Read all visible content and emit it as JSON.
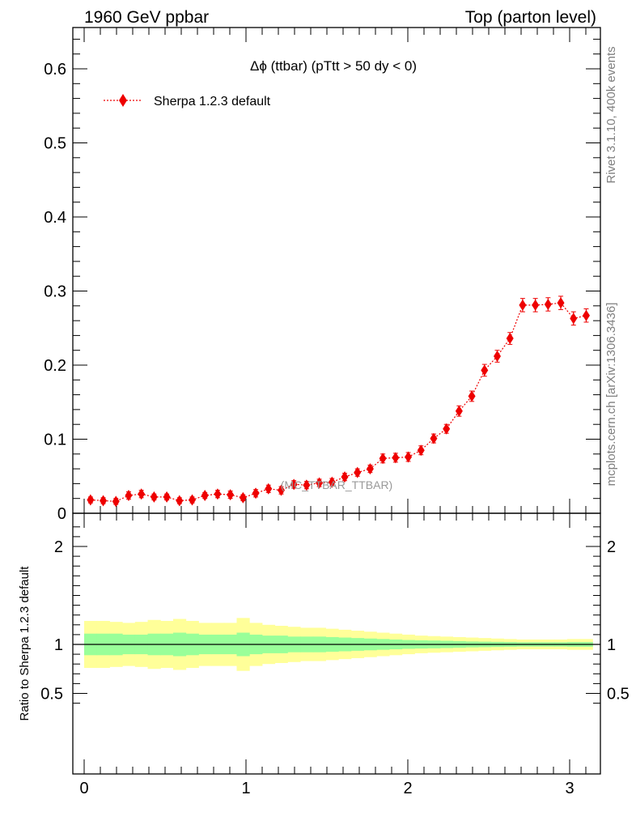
{
  "header": {
    "left": "1960 GeV ppbar",
    "right": "Top (parton level)"
  },
  "side_labels": {
    "rivet": "Rivet 3.1.10,  400k events",
    "mcplots": "mcplots.cern.ch [arXiv:1306.3436]"
  },
  "ratio_ylabel": "Ratio to Sherpa 1.2.3 default",
  "colors": {
    "series": "#ee0000",
    "band_inner": "#99ff99",
    "band_outer": "#ffff99",
    "watermark": "#999999"
  },
  "chart_data": [
    {
      "type": "scatter",
      "title": "Δϕ (ttbar) (pTtt > 50 dy < 0)",
      "watermark": "(MC_TTBAR_TTBAR)",
      "xlim": [
        -0.06,
        3.2
      ],
      "ylim": [
        0,
        0.65
      ],
      "y_ticks": [
        0,
        0.1,
        0.2,
        0.3,
        0.4,
        0.5,
        0.6
      ],
      "y_tick_labels": [
        "0",
        "0.1",
        "0.2",
        "0.3",
        "0.4",
        "0.5",
        "0.6"
      ],
      "grid": false,
      "legend_position": "top-left",
      "series": [
        {
          "name": "Sherpa 1.2.3 default",
          "style": "dotted line with diamond markers",
          "x": [
            0.0393,
            0.1178,
            0.1963,
            0.2749,
            0.3534,
            0.432,
            0.5105,
            0.589,
            0.6676,
            0.7461,
            0.8247,
            0.9032,
            0.9817,
            1.0603,
            1.1388,
            1.2174,
            1.2959,
            1.3744,
            1.453,
            1.5315,
            1.6101,
            1.6886,
            1.7671,
            1.8457,
            1.9242,
            2.0028,
            2.0813,
            2.1598,
            2.2384,
            2.3169,
            2.3955,
            2.474,
            2.5525,
            2.6311,
            2.7096,
            2.7882,
            2.8667,
            2.9452,
            3.0238,
            3.1023
          ],
          "y": [
            0.018,
            0.017,
            0.016,
            0.024,
            0.026,
            0.022,
            0.022,
            0.017,
            0.018,
            0.024,
            0.026,
            0.025,
            0.021,
            0.027,
            0.033,
            0.031,
            0.039,
            0.038,
            0.041,
            0.042,
            0.049,
            0.055,
            0.06,
            0.074,
            0.075,
            0.076,
            0.085,
            0.101,
            0.114,
            0.138,
            0.158,
            0.193,
            0.212,
            0.236,
            0.281,
            0.281,
            0.282,
            0.284,
            0.263,
            0.267
          ],
          "err": [
            0.004,
            0.004,
            0.004,
            0.005,
            0.005,
            0.004,
            0.004,
            0.004,
            0.004,
            0.004,
            0.005,
            0.005,
            0.004,
            0.005,
            0.005,
            0.005,
            0.005,
            0.005,
            0.005,
            0.005,
            0.005,
            0.005,
            0.005,
            0.006,
            0.006,
            0.006,
            0.006,
            0.006,
            0.006,
            0.007,
            0.007,
            0.008,
            0.008,
            0.008,
            0.009,
            0.009,
            0.009,
            0.009,
            0.009,
            0.009
          ]
        }
      ]
    },
    {
      "type": "area",
      "ylabel": "Ratio to Sherpa 1.2.3 default",
      "xlim": [
        -0.06,
        3.2
      ],
      "ylim": [
        0.35,
        2.3
      ],
      "y_ticks": [
        0.5,
        1,
        2
      ],
      "y_tick_labels": [
        "0.5",
        "1",
        "2"
      ],
      "x_ticks": [
        0,
        1,
        2,
        3
      ],
      "x_tick_labels": [
        "0",
        "1",
        "2",
        "3"
      ],
      "reference_line": 1,
      "bands": {
        "x_edges": [
          0.0,
          0.0785,
          0.1571,
          0.2356,
          0.3142,
          0.3927,
          0.4712,
          0.5498,
          0.6283,
          0.7069,
          0.7854,
          0.8639,
          0.9425,
          1.021,
          1.0996,
          1.1781,
          1.2566,
          1.3352,
          1.4137,
          1.4923,
          1.5708,
          1.6493,
          1.7279,
          1.8064,
          1.885,
          1.9635,
          2.042,
          2.1206,
          2.1991,
          2.2777,
          2.3562,
          2.4347,
          2.5133,
          2.5918,
          2.6704,
          2.7489,
          2.8274,
          2.906,
          2.9845,
          3.0631,
          3.1416
        ],
        "inner_halfwidth": [
          0.11,
          0.11,
          0.11,
          0.1,
          0.1,
          0.11,
          0.11,
          0.12,
          0.11,
          0.1,
          0.1,
          0.1,
          0.12,
          0.1,
          0.09,
          0.09,
          0.08,
          0.08,
          0.08,
          0.075,
          0.07,
          0.065,
          0.06,
          0.055,
          0.05,
          0.045,
          0.042,
          0.04,
          0.037,
          0.034,
          0.03,
          0.028,
          0.026,
          0.024,
          0.022,
          0.022,
          0.022,
          0.022,
          0.024,
          0.024
        ],
        "outer_halfwidth": [
          0.24,
          0.24,
          0.23,
          0.22,
          0.23,
          0.25,
          0.24,
          0.26,
          0.24,
          0.22,
          0.22,
          0.22,
          0.27,
          0.22,
          0.2,
          0.19,
          0.18,
          0.17,
          0.17,
          0.16,
          0.15,
          0.14,
          0.13,
          0.12,
          0.11,
          0.1,
          0.09,
          0.085,
          0.08,
          0.075,
          0.07,
          0.065,
          0.06,
          0.055,
          0.05,
          0.05,
          0.05,
          0.05,
          0.055,
          0.055
        ]
      }
    }
  ]
}
